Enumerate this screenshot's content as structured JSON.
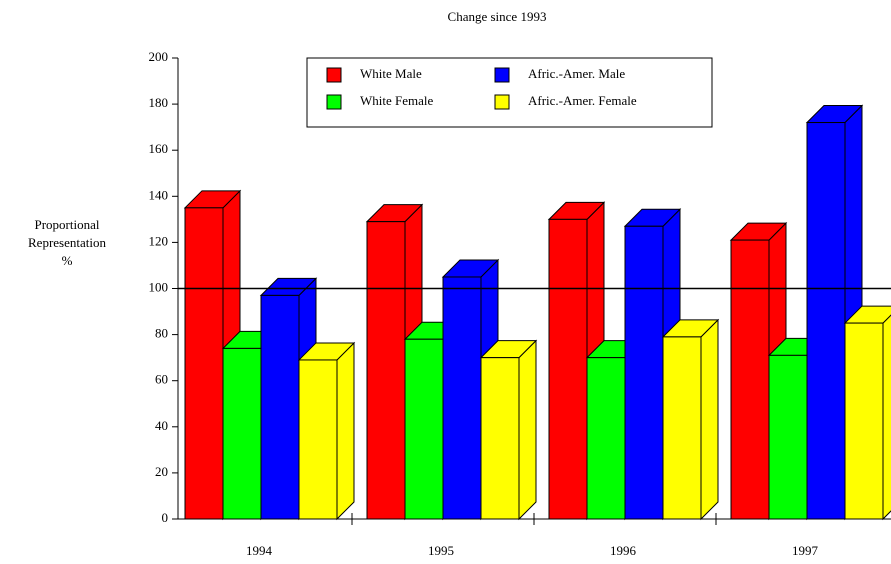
{
  "chart_data": {
    "type": "bar3d",
    "title": "Change since 1993",
    "y_label": "Proportional\nRepresentation\n%",
    "categories": [
      "1994",
      "1995",
      "1996",
      "1997"
    ],
    "series": [
      {
        "name": "White Male",
        "color": "#ff0000",
        "values": [
          135,
          129,
          130,
          121
        ]
      },
      {
        "name": "White Female",
        "color": "#00ff00",
        "values": [
          74,
          78,
          70,
          71
        ]
      },
      {
        "name": "Afric.-Amer. Male",
        "color": "#0000ff",
        "values": [
          97,
          105,
          127,
          172
        ]
      },
      {
        "name": "Afric.-Amer. Female",
        "color": "#ffff00",
        "values": [
          69,
          70,
          79,
          85
        ]
      }
    ],
    "ylim": [
      0,
      200
    ],
    "yticks": [
      0,
      20,
      40,
      60,
      80,
      100,
      120,
      140,
      160,
      180,
      200
    ],
    "reference_line": 100,
    "legend": "top"
  }
}
